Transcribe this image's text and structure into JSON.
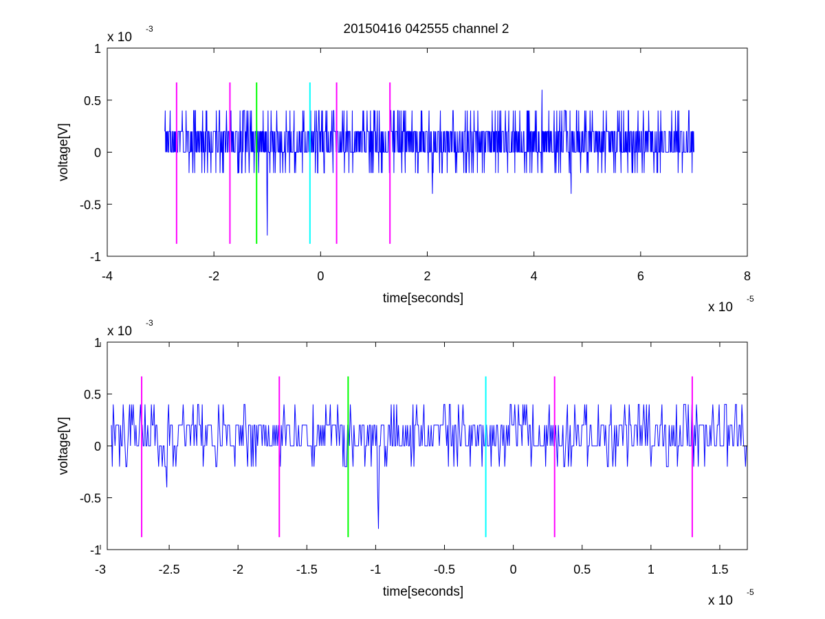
{
  "title": "20150416 042555 channel 2",
  "colors": {
    "signal": "#0000ff",
    "magenta": "#ff00ff",
    "green": "#00ff00",
    "cyan": "#00ffff",
    "axes": "#000000",
    "background": "#ffffff"
  },
  "chart_data": [
    {
      "type": "line",
      "title": "20150416 042555 channel 2",
      "xlabel": "time[seconds]",
      "ylabel": "voltage[V]",
      "x_exponent": "x 10",
      "x_exponent_power": "-5",
      "y_exponent": "x 10",
      "y_exponent_power": "-3",
      "xlim": [
        -4,
        8
      ],
      "ylim": [
        -1,
        1
      ],
      "grid": false,
      "xticks": [
        -4,
        -2,
        0,
        2,
        4,
        6,
        8
      ],
      "xtick_labels": [
        "-4",
        "-2",
        "0",
        "2",
        "4",
        "6",
        "8"
      ],
      "yticks": [
        1,
        0.5,
        0,
        -0.5,
        -1
      ],
      "ytick_labels": [
        "1",
        "0.5",
        "0",
        "-0.5",
        "-1"
      ],
      "series": [
        {
          "color": "blue",
          "x_range": [
            -2.92,
            7.0
          ],
          "y_range": [
            -0.8,
            0.6
          ],
          "levels": [
            -0.2,
            0,
            0.2,
            0.4
          ],
          "note_points": [
            [
              -1.0,
              -0.8
            ],
            [
              4.15,
              0.6
            ],
            [
              2.1,
              -0.4
            ],
            [
              4.7,
              -0.4
            ]
          ]
        }
      ],
      "markers": [
        {
          "x": -2.7,
          "color": "magenta",
          "y_range": [
            -0.88,
            0.67
          ]
        },
        {
          "x": -1.7,
          "color": "magenta",
          "y_range": [
            -0.88,
            0.67
          ]
        },
        {
          "x": -1.2,
          "color": "green",
          "y_range": [
            -0.88,
            0.67
          ]
        },
        {
          "x": -0.2,
          "color": "cyan",
          "y_range": [
            -0.88,
            0.67
          ]
        },
        {
          "x": 0.3,
          "color": "magenta",
          "y_range": [
            -0.88,
            0.67
          ]
        },
        {
          "x": 1.3,
          "color": "magenta",
          "y_range": [
            -0.88,
            0.67
          ]
        }
      ]
    },
    {
      "type": "line",
      "title": "",
      "xlabel": "time[seconds]",
      "ylabel": "voltage[V]",
      "x_exponent": "x 10",
      "x_exponent_power": "-5",
      "y_exponent": "x 10",
      "y_exponent_power": "-3",
      "xlim": [
        -2.95,
        1.7
      ],
      "ylim": [
        -1,
        1
      ],
      "grid": false,
      "xticks": [
        -3,
        -2.5,
        -2,
        -1.5,
        -1,
        -0.5,
        0,
        0.5,
        1,
        1.5
      ],
      "xtick_labels": [
        "-3",
        "-2.5",
        "-2",
        "-1.5",
        "-1",
        "-0.5",
        "0",
        "0.5",
        "1",
        "1.5"
      ],
      "yticks": [
        1,
        0.5,
        0,
        -0.5,
        -1
      ],
      "ytick_labels": [
        "1",
        "0.5",
        "0",
        "-0.5",
        "-1"
      ],
      "series": [
        {
          "color": "blue",
          "x_range": [
            -2.92,
            1.7
          ],
          "y_range": [
            -0.8,
            0.4
          ],
          "levels": [
            -0.2,
            0,
            0.2,
            0.4
          ],
          "note_points": [
            [
              -2.52,
              -0.4
            ],
            [
              -0.98,
              -0.8
            ]
          ]
        }
      ],
      "markers": [
        {
          "x": -2.7,
          "color": "magenta",
          "y_range": [
            -0.88,
            0.67
          ]
        },
        {
          "x": -1.7,
          "color": "magenta",
          "y_range": [
            -0.88,
            0.67
          ]
        },
        {
          "x": -1.2,
          "color": "green",
          "y_range": [
            -0.88,
            0.67
          ]
        },
        {
          "x": -0.2,
          "color": "cyan",
          "y_range": [
            -0.88,
            0.67
          ]
        },
        {
          "x": 0.3,
          "color": "magenta",
          "y_range": [
            -0.88,
            0.67
          ]
        },
        {
          "x": 1.3,
          "color": "magenta",
          "y_range": [
            -0.88,
            0.67
          ]
        }
      ]
    }
  ]
}
